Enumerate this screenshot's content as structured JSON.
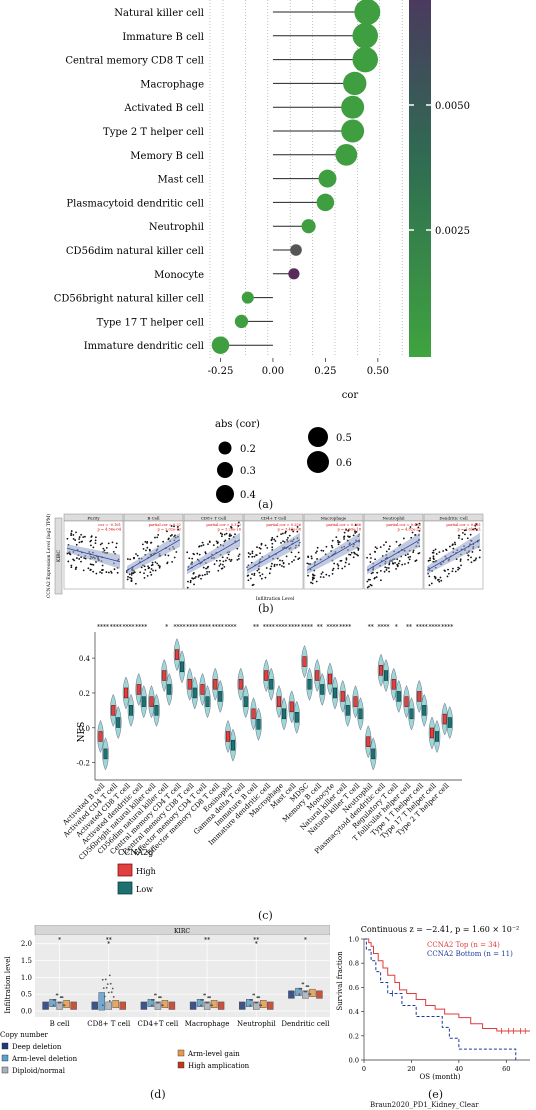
{
  "panel_labels": {
    "a": "(a)",
    "b": "(b)",
    "c": "(c)",
    "d": "(d)",
    "e": "(e)"
  },
  "colors": {
    "green": "#3f9e3f",
    "grey": "#555555",
    "purple": "#5a2a5a",
    "red": "#e23b3b",
    "blue": "#1a3a9a",
    "teal": "#1f6f6f",
    "violet_fill": "#9ecfe6"
  },
  "panel_a": {
    "xlabel": "cor",
    "legend_abs_title": "abs (cor)",
    "legend_abs_items": [
      "0.2",
      "0.3",
      "0.4",
      "0.5",
      "0.6"
    ],
    "colorbar_ticks": [
      "0.0050",
      "0.0025"
    ]
  },
  "panel_b": {
    "ylabel": "CCNA2 Expression Level (log2 TPM)",
    "xlabel": "Infiltration Level",
    "row_label": "KIRC",
    "facets": [
      "Purity",
      "B Cell",
      "CD8+ T Cell",
      "CD4+ T Cell",
      "Macrophage",
      "Neutrophil",
      "Dendritic Cell"
    ],
    "stats": [
      "cor = -0.161\np = 4.56e-04",
      "partial.cor = 0.32\np = 2.02e-12",
      "partial.cor = 0.372\np = 3.26e-16",
      "partial.cor = 0.256\np = 3.44e-08",
      "partial.cor = 0.386\np = 5.69e-18",
      "partial.cor = 0.432\np = 4.82e-22",
      "partial.cor = 0.421\np = 1.61e-21"
    ]
  },
  "panel_c": {
    "ylabel": "NES",
    "legend_title": "CCNA2g",
    "legend_items": [
      "High",
      "Low"
    ],
    "signif": [
      "****",
      "****",
      "****",
      "****",
      "",
      "*",
      "****",
      "****",
      "****",
      "****",
      "****",
      "",
      "**",
      "****",
      "****",
      "****",
      "****",
      "**",
      "****",
      "****",
      "",
      "**",
      "****",
      "*",
      "**",
      "****",
      "****",
      "****",
      "",
      ""
    ]
  },
  "panel_d": {
    "title": "KIRC",
    "ylabel": "Infiltration level",
    "categories": [
      "B cell",
      "CD8+ T cell",
      "CD4+T cell",
      "Macrophage",
      "Neutrophil",
      "Dendritic cell"
    ],
    "y_ticks": [
      "0.0",
      "0.5",
      "1.0",
      "1.5",
      "2.0"
    ],
    "stars": [
      "*",
      "**\n*",
      "",
      "**",
      "**\n*",
      "*"
    ],
    "legend_title": "Copy number",
    "legend_items": [
      "Deep deletion",
      "Arm-level deletion",
      "Diploid/normal",
      "Arm-level gain",
      "High amplication"
    ]
  },
  "panel_e": {
    "title": "Continuous z = −2.41, p = 1.60 × 10⁻²",
    "ylabel": "Survival fraction",
    "xlabel": "OS (month)",
    "legend": [
      "CCNA2 Top (n = 34)",
      "CCNA2 Bottom (n = 11)"
    ],
    "y_ticks": [
      "1.0",
      "0.8",
      "0.6",
      "0.4",
      "0.2",
      "0.0"
    ],
    "x_ticks": [
      "0",
      "20",
      "40",
      "60"
    ]
  },
  "footer_text": "Braun2020_PD1_Kidney_Clear",
  "chart_data": {
    "type": "scatter",
    "xlabel": "cor",
    "xlim": [
      -0.3,
      0.62
    ],
    "x_ticks": [
      "-0.25",
      "0.00",
      "0.25",
      "0.50"
    ],
    "categories": [
      "Natural killer cell",
      "Immature B cell",
      "Central memory CD8 T cell",
      "Macrophage",
      "Activated B cell",
      "Type 2 T helper cell",
      "Memory B cell",
      "Mast cell",
      "Plasmacytoid dendritic cell",
      "Neutrophil",
      "CD56dim natural killer cell",
      "Monocyte",
      "CD56bright natural killer cell",
      "Type 17 T helper cell",
      "Immature dendritic cell"
    ],
    "values": [
      0.45,
      0.44,
      0.44,
      0.39,
      0.38,
      0.38,
      0.35,
      0.26,
      0.25,
      0.17,
      0.11,
      0.1,
      -0.12,
      -0.15,
      -0.25
    ],
    "point_colors": [
      "green",
      "green",
      "green",
      "green",
      "green",
      "green",
      "green",
      "green",
      "green",
      "green",
      "grey",
      "purple",
      "green",
      "green",
      "green"
    ],
    "grid": true
  }
}
